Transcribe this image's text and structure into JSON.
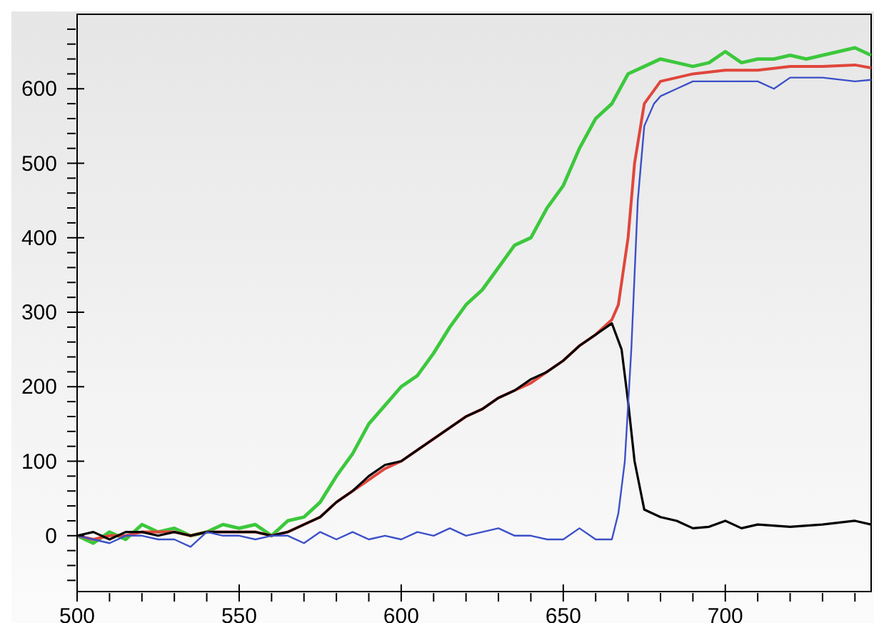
{
  "chart_data": {
    "type": "line",
    "xlim": [
      500,
      745
    ],
    "ylim": [
      -75,
      700
    ],
    "xticks": [
      500,
      {
        "value": 510,
        "label": null
      },
      {
        "value": 520,
        "label": null
      },
      {
        "value": 530,
        "label": null
      },
      {
        "value": 540,
        "label": null
      },
      550,
      {
        "value": 560,
        "label": null
      },
      {
        "value": 570,
        "label": null
      },
      {
        "value": 580,
        "label": null
      },
      {
        "value": 590,
        "label": null
      },
      600,
      {
        "value": 610,
        "label": null
      },
      {
        "value": 620,
        "label": null
      },
      {
        "value": 630,
        "label": null
      },
      {
        "value": 640,
        "label": null
      },
      650,
      {
        "value": 660,
        "label": null
      },
      {
        "value": 670,
        "label": null
      },
      {
        "value": 680,
        "label": null
      },
      {
        "value": 690,
        "label": null
      },
      700,
      {
        "value": 710,
        "label": null
      },
      {
        "value": 720,
        "label": null
      },
      {
        "value": 730,
        "label": null
      },
      {
        "value": 740,
        "label": null
      }
    ],
    "yticks": [
      {
        "value": -60,
        "label": null
      },
      {
        "value": -40,
        "label": null
      },
      {
        "value": -20,
        "label": null
      },
      0,
      {
        "value": 20,
        "label": null
      },
      {
        "value": 40,
        "label": null
      },
      {
        "value": 60,
        "label": null
      },
      {
        "value": 80,
        "label": null
      },
      100,
      {
        "value": 120,
        "label": null
      },
      {
        "value": 140,
        "label": null
      },
      {
        "value": 160,
        "label": null
      },
      {
        "value": 180,
        "label": null
      },
      200,
      {
        "value": 220,
        "label": null
      },
      {
        "value": 240,
        "label": null
      },
      {
        "value": 260,
        "label": null
      },
      {
        "value": 280,
        "label": null
      },
      300,
      {
        "value": 320,
        "label": null
      },
      {
        "value": 340,
        "label": null
      },
      {
        "value": 360,
        "label": null
      },
      {
        "value": 380,
        "label": null
      },
      400,
      {
        "value": 420,
        "label": null
      },
      {
        "value": 440,
        "label": null
      },
      {
        "value": 460,
        "label": null
      },
      {
        "value": 480,
        "label": null
      },
      500,
      {
        "value": 520,
        "label": null
      },
      {
        "value": 540,
        "label": null
      },
      {
        "value": 560,
        "label": null
      },
      {
        "value": 580,
        "label": null
      },
      600,
      {
        "value": 620,
        "label": null
      },
      {
        "value": 640,
        "label": null
      },
      {
        "value": 660,
        "label": null
      },
      {
        "value": 680,
        "label": null
      }
    ],
    "grid": false,
    "marker": "none",
    "line_style": "solid",
    "series": [
      {
        "color": "#3cc83c",
        "x": [
          500,
          505,
          510,
          515,
          520,
          525,
          530,
          535,
          540,
          545,
          550,
          555,
          560,
          565,
          570,
          575,
          580,
          585,
          590,
          595,
          600,
          605,
          610,
          615,
          620,
          625,
          630,
          635,
          640,
          645,
          650,
          655,
          660,
          665,
          670,
          675,
          680,
          685,
          690,
          695,
          700,
          705,
          710,
          715,
          720,
          725,
          730,
          735,
          740,
          745
        ],
        "values": [
          0,
          -10,
          5,
          -5,
          15,
          5,
          10,
          0,
          5,
          15,
          10,
          15,
          0,
          20,
          25,
          45,
          80,
          110,
          150,
          175,
          200,
          215,
          245,
          280,
          310,
          330,
          360,
          390,
          400,
          440,
          470,
          520,
          560,
          580,
          620,
          630,
          640,
          635,
          630,
          635,
          650,
          635,
          640,
          640,
          645,
          640,
          645,
          650,
          655,
          645
        ]
      },
      {
        "color": "#e0463c",
        "x": [
          500,
          505,
          510,
          515,
          520,
          525,
          530,
          535,
          540,
          545,
          550,
          555,
          560,
          565,
          570,
          575,
          580,
          585,
          590,
          595,
          600,
          605,
          610,
          615,
          620,
          625,
          630,
          635,
          640,
          645,
          650,
          655,
          660,
          665,
          667,
          670,
          672,
          675,
          680,
          685,
          690,
          700,
          710,
          720,
          730,
          740,
          745
        ],
        "values": [
          0,
          -5,
          0,
          0,
          5,
          5,
          5,
          0,
          5,
          5,
          5,
          5,
          0,
          5,
          15,
          25,
          45,
          60,
          75,
          90,
          100,
          115,
          130,
          145,
          160,
          170,
          185,
          195,
          205,
          220,
          235,
          255,
          270,
          290,
          310,
          400,
          500,
          580,
          610,
          615,
          620,
          625,
          625,
          630,
          630,
          632,
          628
        ]
      },
      {
        "color": "#000000",
        "x": [
          500,
          505,
          510,
          515,
          520,
          525,
          530,
          535,
          540,
          545,
          550,
          555,
          560,
          565,
          570,
          575,
          580,
          585,
          590,
          595,
          600,
          605,
          610,
          615,
          620,
          625,
          630,
          635,
          640,
          645,
          650,
          655,
          660,
          665,
          668,
          670,
          672,
          675,
          680,
          685,
          690,
          695,
          700,
          705,
          710,
          720,
          730,
          740,
          745
        ],
        "values": [
          0,
          5,
          -5,
          5,
          5,
          0,
          5,
          0,
          5,
          5,
          5,
          5,
          0,
          5,
          15,
          25,
          45,
          60,
          80,
          95,
          100,
          115,
          130,
          145,
          160,
          170,
          185,
          195,
          210,
          220,
          235,
          255,
          270,
          285,
          250,
          180,
          100,
          35,
          25,
          20,
          10,
          12,
          20,
          10,
          15,
          12,
          15,
          20,
          15
        ]
      },
      {
        "color": "#3c50c8",
        "x": [
          500,
          505,
          510,
          515,
          520,
          525,
          530,
          535,
          540,
          545,
          550,
          555,
          560,
          565,
          570,
          575,
          580,
          585,
          590,
          595,
          600,
          605,
          610,
          615,
          620,
          625,
          630,
          635,
          640,
          645,
          650,
          655,
          660,
          665,
          667,
          669,
          671,
          673,
          675,
          678,
          680,
          685,
          690,
          700,
          710,
          715,
          720,
          730,
          740,
          745
        ],
        "values": [
          0,
          -5,
          -10,
          0,
          0,
          -5,
          -5,
          -15,
          5,
          0,
          0,
          -5,
          0,
          0,
          -10,
          5,
          -5,
          5,
          -5,
          0,
          -5,
          5,
          0,
          10,
          0,
          5,
          10,
          0,
          0,
          -5,
          -5,
          10,
          -5,
          -5,
          30,
          100,
          250,
          450,
          550,
          580,
          590,
          600,
          610,
          610,
          610,
          600,
          615,
          615,
          610,
          612
        ]
      }
    ]
  }
}
